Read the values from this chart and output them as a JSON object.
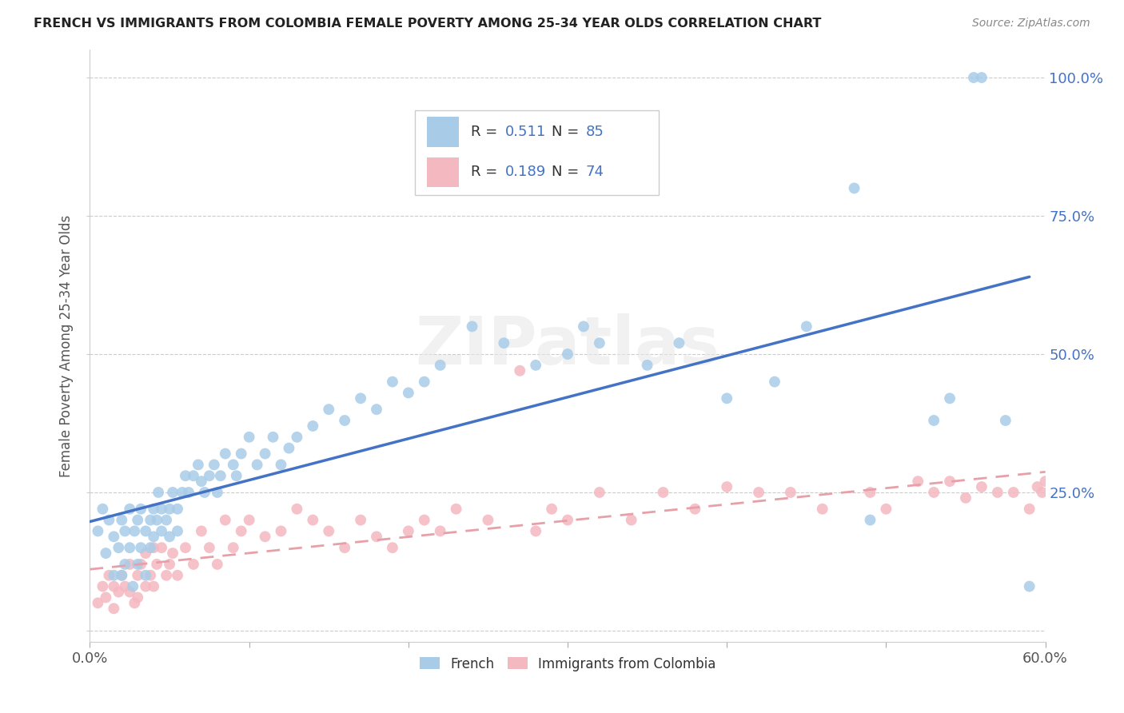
{
  "title": "FRENCH VS IMMIGRANTS FROM COLOMBIA FEMALE POVERTY AMONG 25-34 YEAR OLDS CORRELATION CHART",
  "source": "Source: ZipAtlas.com",
  "ylabel": "Female Poverty Among 25-34 Year Olds",
  "xlim": [
    0.0,
    0.6
  ],
  "ylim": [
    -0.02,
    1.05
  ],
  "french_R": 0.511,
  "french_N": 85,
  "colombia_R": 0.189,
  "colombia_N": 74,
  "french_color": "#a8cce8",
  "colombia_color": "#f4b8c1",
  "french_line_color": "#4472c4",
  "colombia_line_color": "#f4b8c1",
  "watermark": "ZIPatlas",
  "french_scatter_x": [
    0.005,
    0.008,
    0.01,
    0.012,
    0.015,
    0.015,
    0.018,
    0.02,
    0.02,
    0.022,
    0.022,
    0.025,
    0.025,
    0.027,
    0.028,
    0.03,
    0.03,
    0.032,
    0.032,
    0.035,
    0.035,
    0.038,
    0.038,
    0.04,
    0.04,
    0.042,
    0.043,
    0.045,
    0.045,
    0.048,
    0.05,
    0.05,
    0.052,
    0.055,
    0.055,
    0.058,
    0.06,
    0.062,
    0.065,
    0.068,
    0.07,
    0.072,
    0.075,
    0.078,
    0.08,
    0.082,
    0.085,
    0.09,
    0.092,
    0.095,
    0.1,
    0.105,
    0.11,
    0.115,
    0.12,
    0.125,
    0.13,
    0.14,
    0.15,
    0.16,
    0.17,
    0.18,
    0.19,
    0.2,
    0.21,
    0.22,
    0.24,
    0.26,
    0.28,
    0.3,
    0.31,
    0.32,
    0.35,
    0.37,
    0.4,
    0.43,
    0.45,
    0.48,
    0.49,
    0.53,
    0.54,
    0.555,
    0.56,
    0.575,
    0.59
  ],
  "french_scatter_y": [
    0.18,
    0.22,
    0.14,
    0.2,
    0.17,
    0.1,
    0.15,
    0.2,
    0.1,
    0.18,
    0.12,
    0.22,
    0.15,
    0.08,
    0.18,
    0.2,
    0.12,
    0.15,
    0.22,
    0.18,
    0.1,
    0.2,
    0.15,
    0.22,
    0.17,
    0.2,
    0.25,
    0.22,
    0.18,
    0.2,
    0.22,
    0.17,
    0.25,
    0.22,
    0.18,
    0.25,
    0.28,
    0.25,
    0.28,
    0.3,
    0.27,
    0.25,
    0.28,
    0.3,
    0.25,
    0.28,
    0.32,
    0.3,
    0.28,
    0.32,
    0.35,
    0.3,
    0.32,
    0.35,
    0.3,
    0.33,
    0.35,
    0.37,
    0.4,
    0.38,
    0.42,
    0.4,
    0.45,
    0.43,
    0.45,
    0.48,
    0.55,
    0.52,
    0.48,
    0.5,
    0.55,
    0.52,
    0.48,
    0.52,
    0.42,
    0.45,
    0.55,
    0.8,
    0.2,
    0.38,
    0.42,
    1.0,
    1.0,
    0.38,
    0.08
  ],
  "colombia_scatter_x": [
    0.005,
    0.008,
    0.01,
    0.012,
    0.015,
    0.015,
    0.018,
    0.02,
    0.022,
    0.025,
    0.025,
    0.028,
    0.03,
    0.03,
    0.032,
    0.035,
    0.035,
    0.038,
    0.04,
    0.04,
    0.042,
    0.045,
    0.048,
    0.05,
    0.052,
    0.055,
    0.06,
    0.065,
    0.07,
    0.075,
    0.08,
    0.085,
    0.09,
    0.095,
    0.1,
    0.11,
    0.12,
    0.13,
    0.14,
    0.15,
    0.16,
    0.17,
    0.18,
    0.19,
    0.2,
    0.21,
    0.22,
    0.23,
    0.25,
    0.27,
    0.28,
    0.29,
    0.3,
    0.32,
    0.34,
    0.36,
    0.38,
    0.4,
    0.42,
    0.44,
    0.46,
    0.49,
    0.5,
    0.52,
    0.53,
    0.54,
    0.55,
    0.56,
    0.57,
    0.58,
    0.59,
    0.595,
    0.598,
    0.6
  ],
  "colombia_scatter_y": [
    0.05,
    0.08,
    0.06,
    0.1,
    0.04,
    0.08,
    0.07,
    0.1,
    0.08,
    0.12,
    0.07,
    0.05,
    0.1,
    0.06,
    0.12,
    0.08,
    0.14,
    0.1,
    0.15,
    0.08,
    0.12,
    0.15,
    0.1,
    0.12,
    0.14,
    0.1,
    0.15,
    0.12,
    0.18,
    0.15,
    0.12,
    0.2,
    0.15,
    0.18,
    0.2,
    0.17,
    0.18,
    0.22,
    0.2,
    0.18,
    0.15,
    0.2,
    0.17,
    0.15,
    0.18,
    0.2,
    0.18,
    0.22,
    0.2,
    0.47,
    0.18,
    0.22,
    0.2,
    0.25,
    0.2,
    0.25,
    0.22,
    0.26,
    0.25,
    0.25,
    0.22,
    0.25,
    0.22,
    0.27,
    0.25,
    0.27,
    0.24,
    0.26,
    0.25,
    0.25,
    0.22,
    0.26,
    0.25,
    0.27
  ]
}
